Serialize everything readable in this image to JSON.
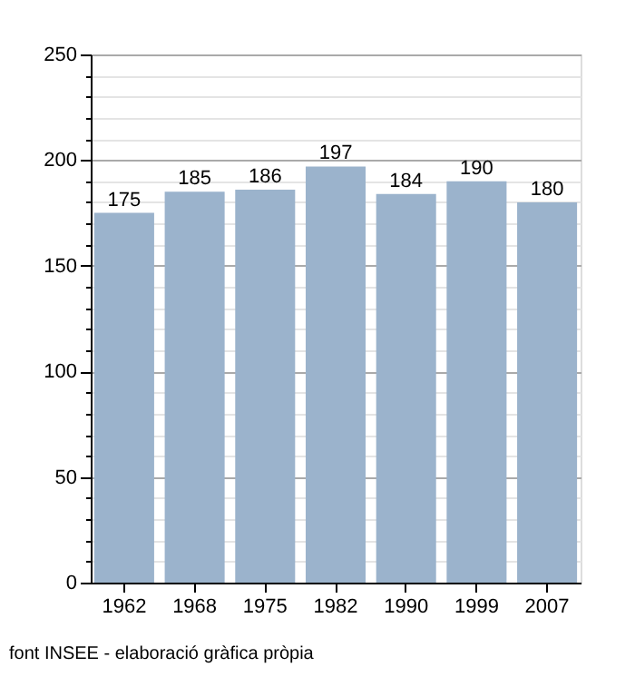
{
  "chart_data": {
    "type": "bar",
    "categories": [
      "1962",
      "1968",
      "1975",
      "1982",
      "1990",
      "1999",
      "2007"
    ],
    "values": [
      175,
      185,
      186,
      197,
      184,
      190,
      180
    ],
    "color": "#9bb3cc",
    "ylim": [
      0,
      250
    ],
    "yticks": [
      0,
      {
        "value": 10,
        "label": null
      },
      {
        "value": 20,
        "label": null
      },
      {
        "value": 30,
        "label": null
      },
      {
        "value": 40,
        "label": null
      },
      50,
      {
        "value": 60,
        "label": null
      },
      {
        "value": 70,
        "label": null
      },
      {
        "value": 80,
        "label": null
      },
      {
        "value": 90,
        "label": null
      },
      100,
      {
        "value": 110,
        "label": null
      },
      {
        "value": 120,
        "label": null
      },
      {
        "value": 130,
        "label": null
      },
      {
        "value": 140,
        "label": null
      },
      150,
      {
        "value": 160,
        "label": null
      },
      {
        "value": 170,
        "label": null
      },
      {
        "value": 180,
        "label": null
      },
      {
        "value": 190,
        "label": null
      },
      200,
      {
        "value": 210,
        "label": null
      },
      {
        "value": 220,
        "label": null
      },
      {
        "value": 230,
        "label": null
      },
      {
        "value": 240,
        "label": null
      },
      250
    ],
    "grid": "y",
    "data_labels": true,
    "annotations": [
      "font INSEE - elaboració gràfica pròpia"
    ]
  }
}
